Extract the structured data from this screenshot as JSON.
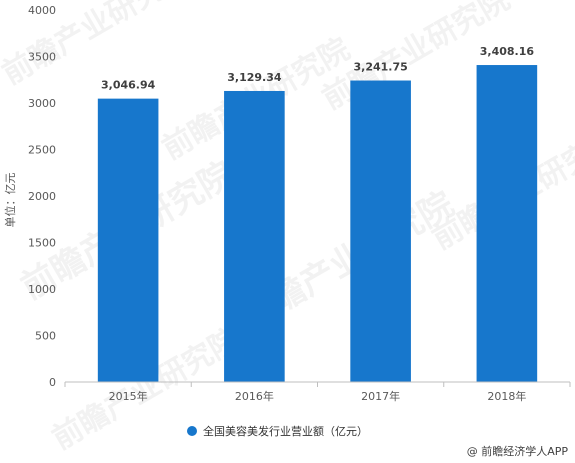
{
  "chart_data": {
    "type": "bar",
    "categories": [
      "2015年",
      "2016年",
      "2017年",
      "2018年"
    ],
    "series": [
      {
        "name": "全国美容美发行业营业额（亿元）",
        "values": [
          3046.94,
          3129.34,
          3241.75,
          3408.16
        ]
      }
    ],
    "data_labels": [
      "3,046.94",
      "3,129.34",
      "3,241.75",
      "3,408.16"
    ],
    "ylabel": "单位：亿元",
    "ylim": [
      0,
      4000
    ],
    "yticks": [
      0,
      500,
      1000,
      1500,
      2000,
      2500,
      3000,
      3500,
      4000
    ],
    "grid": false,
    "legend_position": "bottom-center",
    "bar_color": "#1777cc"
  },
  "watermark": "前瞻产业研究院",
  "credit": "@ 前瞻经济学人APP"
}
